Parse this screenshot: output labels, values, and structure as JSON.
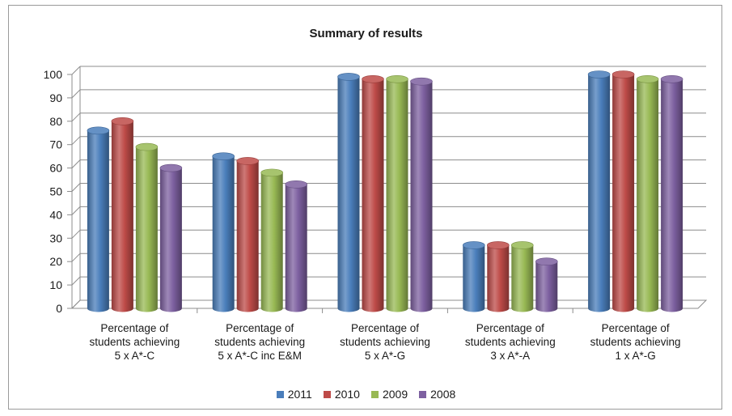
{
  "chart_data": {
    "type": "bar",
    "title": "Summary of results",
    "categories": [
      "Percentage of students achieving 5 x A*-C",
      "Percentage of students achieving 5 x A*-C inc E&M",
      "Percentage of students achieving 5 x A*-G",
      "Percentage of students achieving 3 x A*-A",
      "Percentage of students achieving 1 x A*-G"
    ],
    "category_lines": [
      [
        "Percentage of",
        "students achieving",
        "5 x A*-C"
      ],
      [
        "Percentage of",
        "students achieving",
        "5 x A*-C inc E&M"
      ],
      [
        "Percentage of",
        "students achieving",
        "5 x A*-G"
      ],
      [
        "Percentage of",
        "students achieving",
        "3 x A*-A"
      ],
      [
        "Percentage of",
        "students achieving",
        "1 x A*-G"
      ]
    ],
    "series": [
      {
        "name": "2011",
        "color": "#4a7ebb",
        "values": [
          76,
          65,
          99,
          27,
          100
        ]
      },
      {
        "name": "2010",
        "color": "#be4b48",
        "values": [
          80,
          63,
          98,
          27,
          100
        ]
      },
      {
        "name": "2009",
        "color": "#98b954",
        "values": [
          69,
          58,
          98,
          27,
          98
        ]
      },
      {
        "name": "2008",
        "color": "#7d60a0",
        "values": [
          60,
          53,
          97,
          20,
          98
        ]
      }
    ],
    "ylim": [
      0,
      100
    ],
    "yticks": [
      0,
      10,
      20,
      30,
      40,
      50,
      60,
      70,
      80,
      90,
      100
    ],
    "grid": true,
    "legend_position": "bottom"
  }
}
